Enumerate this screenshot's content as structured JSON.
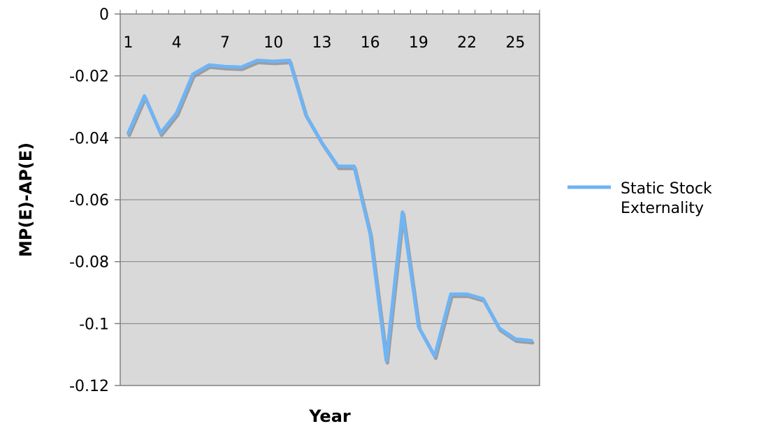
{
  "chart_data": {
    "type": "line",
    "title": "",
    "xlabel": "Year",
    "ylabel": "MP(E)-AP(E)",
    "ylim": [
      -0.12,
      0
    ],
    "y_ticks": [
      0,
      -0.02,
      -0.04,
      -0.06,
      -0.08,
      -0.1,
      -0.12
    ],
    "y_tick_labels": [
      "0",
      "-0.02",
      "-0.04",
      "-0.06",
      "-0.08",
      "-0.1",
      "-0.12"
    ],
    "x_categories": [
      1,
      2,
      3,
      4,
      5,
      6,
      7,
      8,
      9,
      10,
      11,
      12,
      13,
      14,
      15,
      16,
      17,
      18,
      19,
      20,
      21,
      22,
      23,
      24,
      25,
      26
    ],
    "x_tick_labels": [
      "1",
      "4",
      "7",
      "10",
      "13",
      "16",
      "19",
      "22",
      "25"
    ],
    "x_tick_positions": [
      1,
      4,
      7,
      10,
      13,
      16,
      19,
      22,
      25
    ],
    "grid": true,
    "legend_position": "right",
    "plot_background": "#d9d9d9",
    "series": [
      {
        "name": "Static Stock Externality",
        "color": "#6fb4f5",
        "shadow_color": "#8c8c8c",
        "values": [
          -0.0385,
          -0.0265,
          -0.0385,
          -0.032,
          -0.0195,
          -0.0165,
          -0.017,
          -0.0172,
          -0.015,
          -0.0153,
          -0.015,
          -0.0325,
          -0.0415,
          -0.0492,
          -0.0492,
          -0.071,
          -0.112,
          -0.064,
          -0.101,
          -0.1105,
          -0.0905,
          -0.0905,
          -0.092,
          -0.1015,
          -0.105,
          -0.1055
        ]
      }
    ]
  }
}
